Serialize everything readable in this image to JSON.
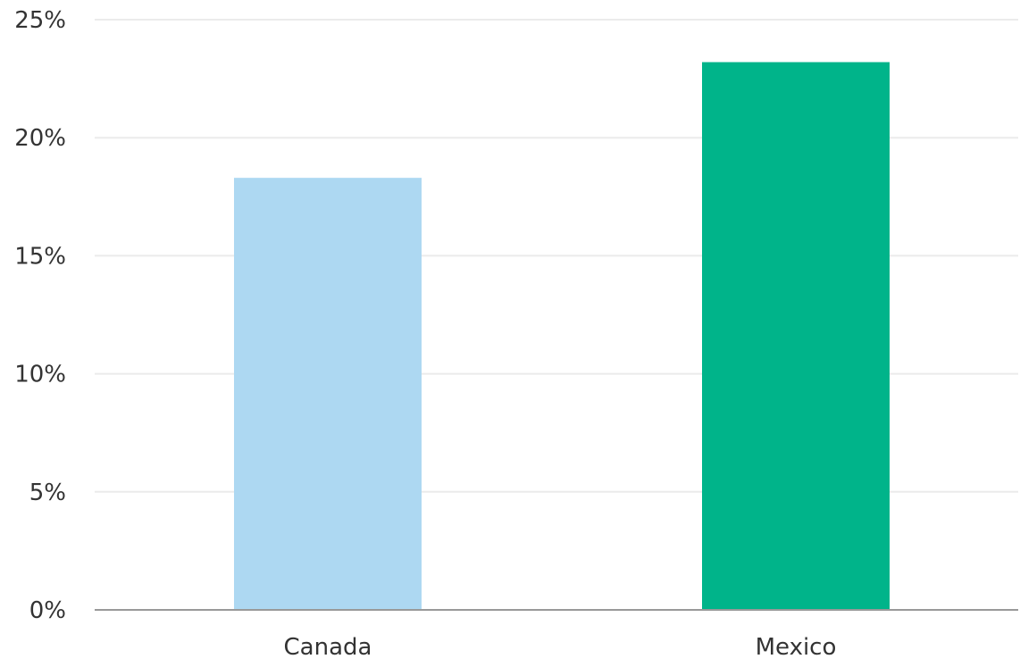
{
  "chart_data": {
    "type": "bar",
    "categories": [
      "Canada",
      "Mexico"
    ],
    "values": [
      18.3,
      23.2
    ],
    "bar_colors": [
      "#ADD8F2",
      "#00B48A"
    ],
    "ylim": [
      0,
      25
    ],
    "yticks": [
      0,
      5,
      10,
      15,
      20,
      25
    ],
    "ytick_labels": [
      "0%",
      "5%",
      "10%",
      "15%",
      "20%",
      "25%"
    ],
    "grid": true,
    "gridline_color": "#EBEBEB",
    "axis_color": "#999999",
    "text_color": "#333333"
  }
}
